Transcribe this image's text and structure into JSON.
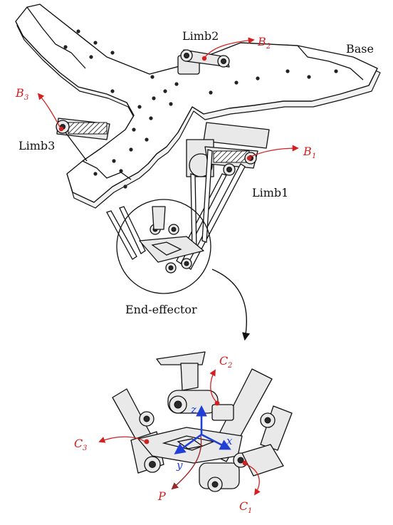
{
  "labels": {
    "base": "Base",
    "limb1": "Limb1",
    "limb2": "Limb2",
    "limb3": "Limb3",
    "end_effector": "End-effector"
  },
  "points": {
    "b1": {
      "letter": "B",
      "sub": "1"
    },
    "b2": {
      "letter": "B",
      "sub": "2"
    },
    "b3": {
      "letter": "B",
      "sub": "3"
    },
    "c1": {
      "letter": "C",
      "sub": "1"
    },
    "c2": {
      "letter": "C",
      "sub": "2"
    },
    "c3": {
      "letter": "C",
      "sub": "3"
    },
    "p": "P"
  },
  "axes": {
    "x": "x",
    "y": "y",
    "z": "z"
  },
  "colors": {
    "joint_marker": "#d42020",
    "frame_axes": "#1f3fd6",
    "point_p_arrow": "#9a2a2a",
    "outline": "#111111"
  }
}
